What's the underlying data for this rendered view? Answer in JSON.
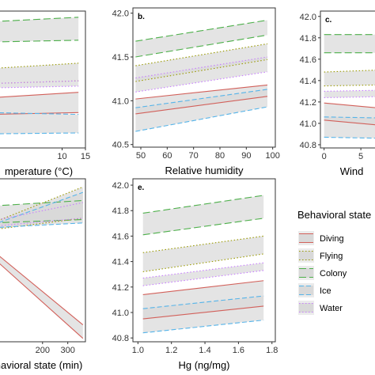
{
  "chart_data": [
    {
      "id": "a",
      "type": "line",
      "panel_tag": "",
      "xlabel": "mperature (°C)",
      "ylabel": "",
      "xlim": [
        -5,
        15
      ],
      "ylim": [
        40.5,
        42.05
      ],
      "xticks": [
        10,
        15
      ],
      "yticks": [],
      "grid": false,
      "series": [
        {
          "name": "Colony",
          "style": "longdash",
          "color": "#4daf4a",
          "x": [
            -5,
            13.5
          ],
          "y": [
            41.93,
            41.98
          ],
          "lower": [
            41.7,
            41.72
          ],
          "upper": [
            41.93,
            41.98
          ]
        },
        {
          "name": "Flying",
          "style": "dotted",
          "color": "#999900",
          "x": [
            -5,
            13.5
          ],
          "y": [
            41.4,
            41.46
          ],
          "lower": [
            41.23,
            41.26
          ],
          "upper": [
            41.4,
            41.46
          ]
        },
        {
          "name": "Water",
          "style": "dotted",
          "color": "#c77cff",
          "x": [
            -5,
            13.5
          ],
          "y": [
            41.23,
            41.26
          ],
          "lower": [
            41.18,
            41.2
          ],
          "upper": [
            41.23,
            41.26
          ]
        },
        {
          "name": "Diving",
          "style": "solid",
          "color": "#d2605a",
          "x": [
            -5,
            13.5
          ],
          "y": [
            41.07,
            41.13
          ],
          "lower": [
            40.88,
            40.9
          ],
          "upper": [
            41.07,
            41.13
          ]
        },
        {
          "name": "Ice",
          "style": "dashed",
          "color": "#56b4e9",
          "x": [
            -5,
            13.5
          ],
          "y": [
            40.9,
            40.88
          ],
          "lower": [
            40.66,
            40.67
          ],
          "upper": [
            40.9,
            40.88
          ]
        }
      ]
    },
    {
      "id": "b",
      "type": "line",
      "panel_tag": "b.",
      "xlabel": "Relative humidity",
      "ylabel": "",
      "xlim": [
        47,
        101
      ],
      "ylim": [
        40.47,
        42.06
      ],
      "xticks": [
        50,
        60,
        70,
        80,
        90,
        100
      ],
      "yticks": [
        40.5,
        41.0,
        41.5,
        42.0
      ],
      "ytick_labels": [
        "40.5",
        "41.0",
        "41.5",
        "42.0"
      ],
      "grid": false,
      "series": [
        {
          "name": "Colony",
          "style": "longdash",
          "color": "#4daf4a",
          "x": [
            48,
            98
          ],
          "y": [
            41.68,
            41.92
          ],
          "lower": [
            41.5,
            41.75
          ],
          "upper": [
            41.68,
            41.92
          ]
        },
        {
          "name": "Flying",
          "style": "dotted",
          "color": "#999900",
          "x": [
            48,
            98
          ],
          "y": [
            41.4,
            41.65
          ],
          "lower": [
            41.22,
            41.47
          ],
          "upper": [
            41.4,
            41.65
          ]
        },
        {
          "name": "Water",
          "style": "dotted",
          "color": "#c77cff",
          "x": [
            48,
            98
          ],
          "y": [
            41.26,
            41.5
          ],
          "lower": [
            41.1,
            41.33
          ],
          "upper": [
            41.26,
            41.5
          ]
        },
        {
          "name": "Diving",
          "style": "solid",
          "color": "#d2605a",
          "x": [
            48,
            98
          ],
          "y": [
            41.02,
            41.18
          ],
          "lower": [
            40.85,
            41.05
          ],
          "upper": [
            41.02,
            41.18
          ]
        },
        {
          "name": "Ice",
          "style": "dashed",
          "color": "#56b4e9",
          "x": [
            48,
            98
          ],
          "y": [
            40.92,
            41.13
          ],
          "lower": [
            40.65,
            40.93
          ],
          "upper": [
            40.92,
            41.13
          ]
        }
      ]
    },
    {
      "id": "c",
      "type": "line",
      "panel_tag": "c.",
      "xlabel": "Wind",
      "ylabel": "",
      "xlim": [
        -0.5,
        8
      ],
      "ylim": [
        40.77,
        42.05
      ],
      "xticks": [
        0,
        5
      ],
      "yticks": [
        40.8,
        41.0,
        41.2,
        41.4,
        41.6,
        41.8,
        42.0
      ],
      "ytick_labels": [
        "40.8",
        "41.0",
        "41.2",
        "41.4",
        "41.6",
        "41.8",
        "42.0"
      ],
      "grid": false,
      "series": [
        {
          "name": "Colony",
          "style": "longdash",
          "color": "#4daf4a",
          "x": [
            0,
            8
          ],
          "y": [
            41.83,
            41.83
          ],
          "lower": [
            41.66,
            41.66
          ],
          "upper": [
            41.83,
            41.83
          ]
        },
        {
          "name": "Flying",
          "style": "dotted",
          "color": "#999900",
          "x": [
            0,
            8
          ],
          "y": [
            41.48,
            41.5
          ],
          "lower": [
            41.35,
            41.36
          ],
          "upper": [
            41.48,
            41.5
          ]
        },
        {
          "name": "Water",
          "style": "dotted",
          "color": "#c77cff",
          "x": [
            0,
            8
          ],
          "y": [
            41.3,
            41.31
          ],
          "lower": [
            41.24,
            41.25
          ],
          "upper": [
            41.3,
            41.31
          ]
        },
        {
          "name": "Diving",
          "style": "solid",
          "color": "#d2605a",
          "x": [
            0,
            8
          ],
          "y": [
            41.19,
            41.14
          ],
          "lower": [
            41.03,
            40.98
          ],
          "upper": [
            41.19,
            41.14
          ]
        },
        {
          "name": "Ice",
          "style": "dashed",
          "color": "#56b4e9",
          "x": [
            0,
            8
          ],
          "y": [
            41.06,
            41.05
          ],
          "lower": [
            40.87,
            40.86
          ],
          "upper": [
            41.06,
            41.05
          ]
        }
      ]
    },
    {
      "id": "d",
      "type": "line",
      "panel_tag": "",
      "xlabel": "havioral state (min)",
      "ylabel": "",
      "xlim": [
        0,
        370
      ],
      "ylim": [
        39.8,
        42.2
      ],
      "xticks": [
        200,
        300
      ],
      "yticks": [],
      "grid": false,
      "series": [
        {
          "name": "Colony",
          "style": "longdash",
          "color": "#4daf4a",
          "x": [
            0,
            360
          ],
          "y": [
            41.8,
            41.88
          ],
          "lower": [
            41.55,
            41.6
          ],
          "upper": [
            41.8,
            41.88
          ]
        },
        {
          "name": "Flying",
          "style": "dotted",
          "color": "#999900",
          "x": [
            0,
            360
          ],
          "y": [
            41.55,
            42.08
          ],
          "lower": [
            41.45,
            41.62
          ],
          "upper": [
            41.55,
            42.08
          ]
        },
        {
          "name": "Ice",
          "style": "dashed",
          "color": "#56b4e9",
          "x": [
            0,
            360
          ],
          "y": [
            41.52,
            42.0
          ],
          "lower": [
            41.48,
            41.55
          ],
          "upper": [
            41.52,
            42.0
          ]
        },
        {
          "name": "Water",
          "style": "dotted",
          "color": "#c77cff",
          "x": [
            0,
            360
          ],
          "y": [
            41.58,
            41.85
          ],
          "lower": [
            41.5,
            41.62
          ],
          "upper": [
            41.58,
            41.85
          ]
        },
        {
          "name": "Diving",
          "style": "solid",
          "color": "#d2605a",
          "x": [
            0,
            360
          ],
          "y": [
            41.15,
            40.05
          ],
          "lower": [
            41.05,
            39.85
          ],
          "upper": [
            41.15,
            40.05
          ]
        }
      ]
    },
    {
      "id": "e",
      "type": "line",
      "panel_tag": "e.",
      "xlabel": "Hg (ng/mg)",
      "ylabel": "",
      "xlim": [
        0.97,
        1.82
      ],
      "ylim": [
        40.77,
        42.05
      ],
      "xticks": [
        1.0,
        1.2,
        1.4,
        1.6,
        1.8
      ],
      "xtick_labels": [
        "1.0",
        "1.2",
        "1.4",
        "1.6",
        "1.8"
      ],
      "yticks": [
        40.8,
        41.0,
        41.2,
        41.4,
        41.6,
        41.8,
        42.0
      ],
      "ytick_labels": [
        "40.8",
        "41.0",
        "41.2",
        "41.4",
        "41.6",
        "41.8",
        "42.0"
      ],
      "grid": false,
      "series": [
        {
          "name": "Colony",
          "style": "longdash",
          "color": "#4daf4a",
          "x": [
            1.03,
            1.75
          ],
          "y": [
            41.78,
            41.92
          ],
          "lower": [
            41.61,
            41.74
          ],
          "upper": [
            41.78,
            41.92
          ]
        },
        {
          "name": "Flying",
          "style": "dotted",
          "color": "#999900",
          "x": [
            1.03,
            1.75
          ],
          "y": [
            41.47,
            41.6
          ],
          "lower": [
            41.32,
            41.46
          ],
          "upper": [
            41.47,
            41.6
          ]
        },
        {
          "name": "Water",
          "style": "dotted",
          "color": "#c77cff",
          "x": [
            1.03,
            1.75
          ],
          "y": [
            41.27,
            41.39
          ],
          "lower": [
            41.21,
            41.33
          ],
          "upper": [
            41.27,
            41.39
          ]
        },
        {
          "name": "Diving",
          "style": "solid",
          "color": "#d2605a",
          "x": [
            1.03,
            1.75
          ],
          "y": [
            41.14,
            41.25
          ],
          "lower": [
            40.95,
            41.05
          ],
          "upper": [
            41.14,
            41.25
          ]
        },
        {
          "name": "Ice",
          "style": "dashed",
          "color": "#56b4e9",
          "x": [
            1.03,
            1.75
          ],
          "y": [
            41.03,
            41.13
          ],
          "lower": [
            40.84,
            40.94
          ],
          "upper": [
            41.03,
            41.13
          ]
        }
      ]
    }
  ],
  "legend": {
    "title": "Behavioral state",
    "items": [
      {
        "label": "Diving",
        "style": "solid",
        "color": "#d2605a"
      },
      {
        "label": "Flying",
        "style": "dotted",
        "color": "#999900"
      },
      {
        "label": "Colony",
        "style": "longdash",
        "color": "#4daf4a"
      },
      {
        "label": "Ice",
        "style": "dashed",
        "color": "#56b4e9"
      },
      {
        "label": "Water",
        "style": "dotted",
        "color": "#c77cff"
      }
    ]
  },
  "colors": {
    "band_fill": "#d9d9d9",
    "axis": "#333333"
  }
}
